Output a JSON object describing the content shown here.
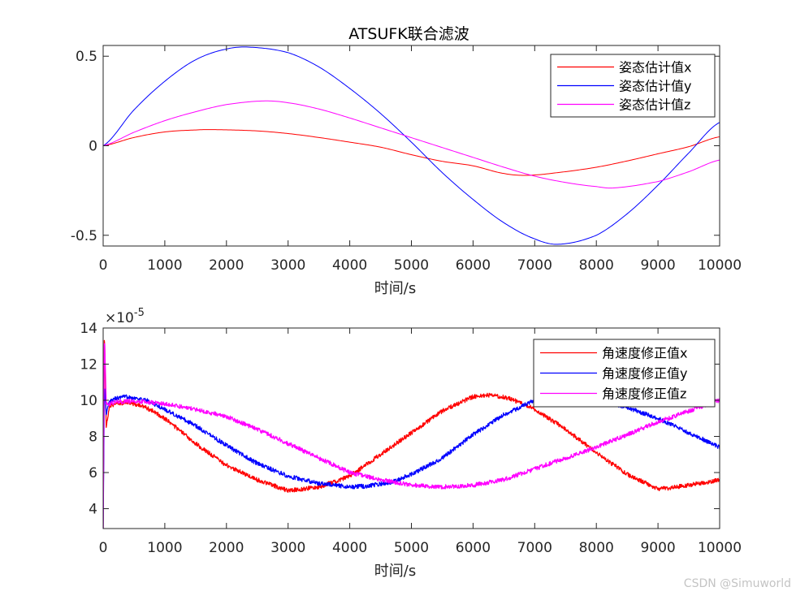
{
  "watermark": "CSDN @Simuworld",
  "chart_data": [
    {
      "type": "line",
      "title": "ATSUFK联合滤波",
      "xlabel": "时间/s",
      "ylabel": "",
      "xlim": [
        0,
        10000
      ],
      "ylim": [
        -0.56,
        0.56
      ],
      "xticks": [
        0,
        1000,
        2000,
        3000,
        4000,
        5000,
        6000,
        7000,
        8000,
        9000,
        10000
      ],
      "xtick_labels": [
        "0",
        "1000",
        "2000",
        "3000",
        "4000",
        "5000",
        "6000",
        "7000",
        "8000",
        "9000",
        "10000"
      ],
      "yticks": [
        -0.5,
        0,
        0.5
      ],
      "ytick_labels": [
        "-0.5",
        "0",
        "0.5"
      ],
      "grid": false,
      "legend_position": "top-right",
      "series": [
        {
          "name": "姿态估计值x",
          "color": "#ff0000",
          "x": [
            0,
            500,
            1000,
            1500,
            1800,
            2500,
            3000,
            3500,
            4000,
            4500,
            5000,
            5500,
            6000,
            6500,
            6900,
            7500,
            8000,
            8500,
            9000,
            9500,
            10000
          ],
          "y": [
            0,
            0.046,
            0.077,
            0.088,
            0.09,
            0.083,
            0.068,
            0.046,
            0.02,
            -0.008,
            -0.05,
            -0.087,
            -0.112,
            -0.155,
            -0.165,
            -0.145,
            -0.12,
            -0.085,
            -0.045,
            -0.005,
            0.05
          ]
        },
        {
          "name": "姿态估计值y",
          "color": "#0000ff",
          "x": [
            0,
            500,
            1000,
            1500,
            2000,
            2400,
            3000,
            3500,
            4000,
            4500,
            5000,
            5500,
            6000,
            6500,
            7000,
            7400,
            8000,
            8500,
            9000,
            9500,
            10000
          ],
          "y": [
            0,
            0.2,
            0.36,
            0.48,
            0.54,
            0.55,
            0.52,
            0.44,
            0.32,
            0.18,
            0.02,
            -0.15,
            -0.3,
            -0.43,
            -0.52,
            -0.55,
            -0.5,
            -0.38,
            -0.22,
            -0.04,
            0.13
          ]
        },
        {
          "name": "姿态估计值z",
          "color": "#ff00ff",
          "x": [
            0,
            500,
            1000,
            1500,
            2000,
            2600,
            3000,
            3500,
            4000,
            4500,
            5000,
            5500,
            6000,
            6500,
            7000,
            7500,
            8000,
            8300,
            9000,
            9500,
            10000
          ],
          "y": [
            0,
            0.075,
            0.14,
            0.19,
            0.23,
            0.25,
            0.24,
            0.205,
            0.155,
            0.1,
            0.045,
            -0.01,
            -0.065,
            -0.12,
            -0.17,
            -0.205,
            -0.228,
            -0.235,
            -0.2,
            -0.145,
            -0.08
          ]
        }
      ]
    },
    {
      "type": "line",
      "title": "",
      "xlabel": "时间/s",
      "ylabel": "",
      "exponent_label": "×10-5",
      "exponent_base": "×10",
      "exponent_power": "-5",
      "xlim": [
        0,
        10000
      ],
      "ylim": [
        2.9,
        14
      ],
      "xticks": [
        0,
        1000,
        2000,
        3000,
        4000,
        5000,
        6000,
        7000,
        8000,
        9000,
        10000
      ],
      "xtick_labels": [
        "0",
        "1000",
        "2000",
        "3000",
        "4000",
        "5000",
        "6000",
        "7000",
        "8000",
        "9000",
        "10000"
      ],
      "yticks": [
        4,
        6,
        8,
        10,
        12,
        14
      ],
      "ytick_labels": [
        "4",
        "6",
        "8",
        "10",
        "12",
        "14"
      ],
      "grid": false,
      "legend_position": "top-right",
      "series": [
        {
          "name": "角速度修正值x",
          "color": "#ff0000",
          "x": [
            0,
            20,
            50,
            100,
            200,
            400,
            700,
            1000,
            1500,
            2000,
            2500,
            3000,
            3500,
            4000,
            4500,
            5000,
            5500,
            6000,
            6300,
            6600,
            7000,
            7500,
            8000,
            8500,
            9000,
            9200,
            9500,
            10000
          ],
          "y": [
            2.9,
            14,
            8.5,
            9.7,
            9.8,
            9.9,
            9.6,
            9.0,
            7.6,
            6.4,
            5.6,
            5.0,
            5.2,
            5.8,
            7.0,
            8.2,
            9.4,
            10.2,
            10.3,
            10.1,
            9.5,
            8.4,
            7.1,
            5.9,
            5.1,
            5.15,
            5.3,
            5.6
          ],
          "noise": 0.12
        },
        {
          "name": "角速度修正值y",
          "color": "#0000ff",
          "x": [
            0,
            20,
            50,
            100,
            200,
            400,
            700,
            1000,
            1500,
            2000,
            2500,
            3000,
            3500,
            4000,
            4300,
            4700,
            5000,
            5500,
            6000,
            6500,
            7000,
            7500,
            8000,
            8500,
            9000,
            9500,
            10000
          ],
          "y": [
            2.9,
            10.9,
            9.2,
            9.9,
            10.1,
            10.2,
            10.0,
            9.5,
            8.6,
            7.5,
            6.5,
            5.8,
            5.4,
            5.2,
            5.25,
            5.5,
            5.9,
            6.8,
            8.1,
            9.2,
            10.0,
            10.3,
            10.1,
            9.6,
            9.0,
            8.2,
            7.4
          ],
          "noise": 0.12
        },
        {
          "name": "角速度修正值z",
          "color": "#ff00ff",
          "x": [
            0,
            20,
            50,
            100,
            200,
            400,
            700,
            1000,
            1500,
            2000,
            2500,
            3000,
            3500,
            4000,
            4500,
            5000,
            5500,
            6000,
            6500,
            7000,
            7500,
            8000,
            8500,
            9000,
            9500,
            10000
          ],
          "y": [
            2.9,
            13.8,
            9.8,
            9.8,
            9.9,
            9.95,
            9.9,
            9.8,
            9.5,
            9.1,
            8.4,
            7.6,
            6.8,
            6.0,
            5.6,
            5.3,
            5.2,
            5.3,
            5.6,
            6.2,
            6.8,
            7.4,
            8.1,
            8.8,
            9.4,
            10.0
          ],
          "noise": 0.12
        }
      ]
    }
  ]
}
